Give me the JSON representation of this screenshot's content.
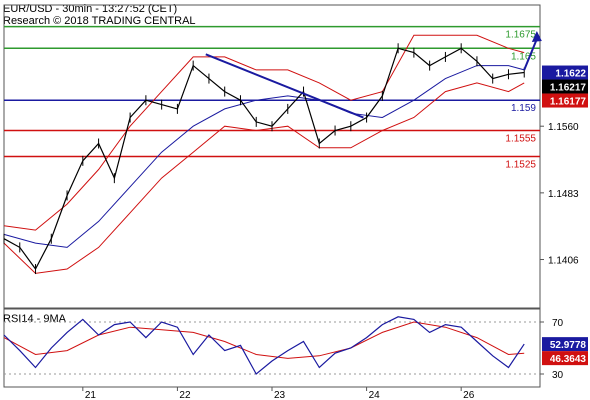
{
  "chart_data": {
    "type": "line",
    "title": "EUR/USD - 30min - 13:27:52 (CET)",
    "subtitle": "Research © 2018 TRADING CENTRAL",
    "price_axis": {
      "ylim": [
        1.135,
        1.17
      ],
      "ticks": [
        "1.1406",
        "1.1483",
        "1.1560"
      ]
    },
    "x_axis": {
      "labels": [
        "21",
        "22",
        "23",
        "24",
        "26"
      ],
      "label_positions": [
        2.5,
        5.5,
        8.5,
        11.5,
        14.5
      ],
      "xlim": [
        0,
        17
      ]
    },
    "levels": [
      {
        "label": "1.1675",
        "value": 1.1675,
        "color": "#2e9a2e"
      },
      {
        "label": "1.165",
        "value": 1.165,
        "color": "#2e9a2e"
      },
      {
        "label": "1.159",
        "value": 1.159,
        "color": "#1a1aa0"
      },
      {
        "label": "1.1555",
        "value": 1.1555,
        "color": "#d01010"
      },
      {
        "label": "1.1525",
        "value": 1.1525,
        "color": "#d01010"
      }
    ],
    "price_tags": [
      {
        "label": "1.1622",
        "value": 1.1622,
        "bg": "#1a1aa0",
        "fg": "#ffffff"
      },
      {
        "label": "1.16217",
        "value": 1.16217,
        "bg": "#000000",
        "fg": "#ffffff"
      },
      {
        "label": "1.16177",
        "value": 1.16177,
        "bg": "#d01010",
        "fg": "#ffffff"
      }
    ],
    "price_series": {
      "x": [
        0,
        0.5,
        1,
        1.5,
        2,
        2.5,
        3,
        3.5,
        4,
        4.5,
        5,
        5.5,
        6,
        6.5,
        7,
        7.5,
        8,
        8.5,
        9,
        9.5,
        10,
        10.5,
        11,
        11.5,
        12,
        12.5,
        13,
        13.5,
        14,
        14.5,
        15,
        15.5,
        16,
        16.5
      ],
      "y": [
        1.143,
        1.142,
        1.1395,
        1.143,
        1.148,
        1.152,
        1.154,
        1.15,
        1.157,
        1.159,
        1.1585,
        1.158,
        1.163,
        1.1615,
        1.16,
        1.159,
        1.1565,
        1.156,
        1.158,
        1.16,
        1.154,
        1.1555,
        1.156,
        1.157,
        1.1595,
        1.165,
        1.1645,
        1.163,
        1.164,
        1.165,
        1.1635,
        1.1615,
        1.162,
        1.1622
      ]
    },
    "ma_series": {
      "x": [
        0,
        1,
        2,
        3,
        4,
        5,
        6,
        7,
        8,
        9,
        10,
        11,
        12,
        13,
        14,
        15,
        16,
        16.5
      ],
      "y": [
        1.1435,
        1.1425,
        1.142,
        1.145,
        1.149,
        1.153,
        1.156,
        1.158,
        1.159,
        1.1595,
        1.159,
        1.1575,
        1.157,
        1.159,
        1.1615,
        1.163,
        1.163,
        1.1625
      ]
    },
    "bb_upper": {
      "x": [
        0,
        1,
        2,
        3,
        4,
        5,
        6,
        7,
        8,
        9,
        10,
        11,
        12,
        13,
        14,
        15,
        16,
        16.5
      ],
      "y": [
        1.1445,
        1.144,
        1.147,
        1.151,
        1.156,
        1.16,
        1.164,
        1.164,
        1.1625,
        1.1625,
        1.161,
        1.159,
        1.16,
        1.1665,
        1.1665,
        1.1665,
        1.165,
        1.1645
      ]
    },
    "bb_lower": {
      "x": [
        0,
        1,
        2,
        3,
        4,
        5,
        6,
        7,
        8,
        9,
        10,
        11,
        12,
        13,
        14,
        15,
        16,
        16.5
      ],
      "y": [
        1.1425,
        1.139,
        1.1395,
        1.142,
        1.146,
        1.15,
        1.153,
        1.156,
        1.1555,
        1.156,
        1.1535,
        1.1535,
        1.1555,
        1.157,
        1.16,
        1.161,
        1.16,
        1.161
      ]
    },
    "trendline": {
      "x": [
        6.4,
        11.4
      ],
      "y": [
        1.1643,
        1.157
      ],
      "color": "#1a1aa0"
    },
    "forecast_arrow": {
      "x": [
        16.5,
        16.9
      ],
      "y": [
        1.1625,
        1.167
      ],
      "color": "#1a1aa0"
    },
    "rsi": {
      "title": "RSI14 - 9MA",
      "ylim": [
        20,
        80
      ],
      "ticks": [
        "70",
        "30"
      ],
      "levels": [
        70,
        30
      ],
      "tags": [
        {
          "label": "52.9778",
          "value": 52.9778,
          "bg": "#1a1aa0",
          "fg": "#ffffff"
        },
        {
          "label": "46.3643",
          "value": 46.3643,
          "bg": "#d01010",
          "fg": "#ffffff"
        }
      ],
      "rsi_series": {
        "x": [
          0,
          0.5,
          1,
          1.5,
          2,
          2.5,
          3,
          3.5,
          4,
          4.5,
          5,
          5.5,
          6,
          6.5,
          7,
          7.5,
          8,
          8.5,
          9,
          9.5,
          10,
          10.5,
          11,
          11.5,
          12,
          12.5,
          13,
          13.5,
          14,
          14.5,
          15,
          15.5,
          16,
          16.5
        ],
        "y": [
          60,
          48,
          35,
          50,
          62,
          72,
          60,
          68,
          70,
          58,
          70,
          66,
          45,
          60,
          48,
          52,
          30,
          40,
          48,
          55,
          35,
          46,
          50,
          58,
          68,
          74,
          72,
          62,
          68,
          66,
          55,
          44,
          35,
          53
        ]
      },
      "ma_series": {
        "x": [
          0,
          1,
          2,
          3,
          4,
          5,
          6,
          7,
          8,
          9,
          10,
          11,
          12,
          13,
          14,
          15,
          16,
          16.5
        ],
        "y": [
          58,
          45,
          48,
          60,
          66,
          64,
          62,
          55,
          45,
          42,
          44,
          50,
          62,
          70,
          66,
          58,
          45,
          46
        ]
      }
    }
  }
}
